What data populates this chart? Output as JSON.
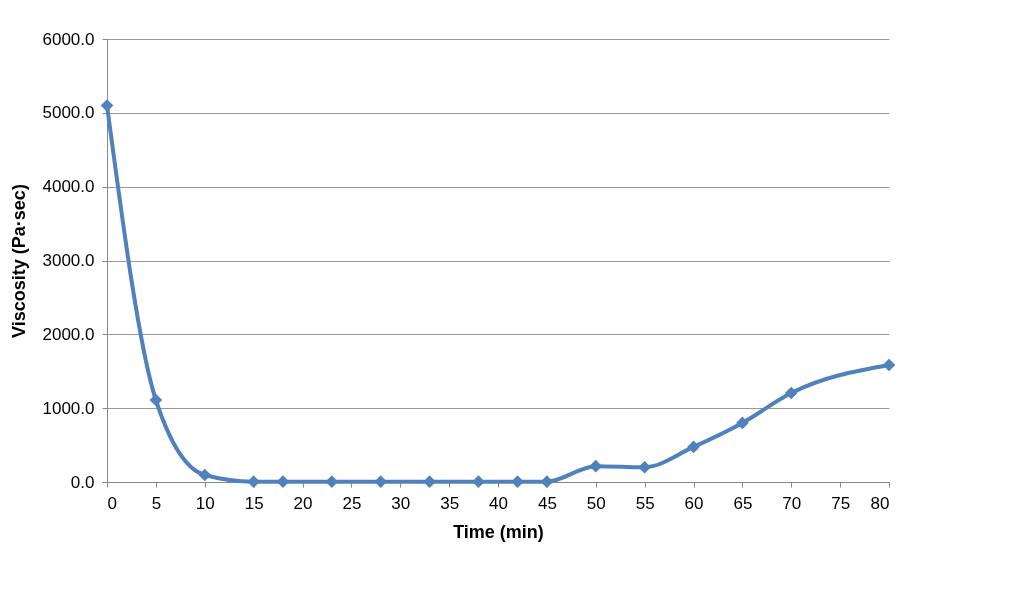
{
  "chart_data": {
    "type": "line",
    "xlabel": "Time (min)",
    "ylabel": "Viscosity (Pa·sec)",
    "x": [
      0,
      5,
      10,
      15,
      18,
      23,
      28,
      33,
      38,
      42,
      45,
      50,
      55,
      60,
      65,
      70,
      80
    ],
    "series": [
      {
        "color": "#4f81bd",
        "values": [
          5100,
          1110,
          95,
          5,
          5,
          5,
          5,
          5,
          5,
          5,
          5,
          215,
          200,
          475,
          800,
          1205,
          1585
        ]
      }
    ],
    "xlim": [
      0,
      80
    ],
    "xticks": [
      0,
      5,
      10,
      15,
      20,
      25,
      30,
      35,
      40,
      45,
      50,
      55,
      60,
      65,
      70,
      75,
      80
    ],
    "ylim": [
      0,
      6000
    ],
    "yticks": [
      {
        "value": 0,
        "label": "0.0"
      },
      {
        "value": 1000,
        "label": "1000.0"
      },
      {
        "value": 2000,
        "label": "2000.0"
      },
      {
        "value": 3000,
        "label": "3000.0"
      },
      {
        "value": 4000,
        "label": "4000.0"
      },
      {
        "value": 5000,
        "label": "5000.0"
      },
      {
        "value": 6000,
        "label": "6000.0"
      }
    ],
    "grid": "y",
    "marker": "diamond",
    "line_style": "solid",
    "legend": false
  }
}
